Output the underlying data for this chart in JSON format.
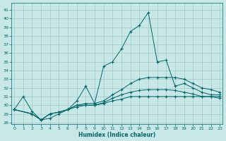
{
  "background_color": "#c8e8e8",
  "grid_color": "#a0c8c8",
  "line_color": "#006666",
  "xlabel": "Humidex (Indice chaleur)",
  "xlim": [
    -0.3,
    23.3
  ],
  "ylim": [
    27.8,
    41.8
  ],
  "yticks": [
    28,
    29,
    30,
    31,
    32,
    33,
    34,
    35,
    36,
    37,
    38,
    39,
    40,
    41
  ],
  "xticks": [
    0,
    1,
    2,
    3,
    4,
    5,
    6,
    7,
    8,
    9,
    10,
    11,
    12,
    13,
    14,
    15,
    16,
    17,
    18,
    19,
    20,
    21,
    22,
    23
  ],
  "curve_main_x": [
    0,
    1,
    2,
    3,
    4,
    5,
    6,
    7,
    8,
    9,
    10,
    11,
    12,
    13,
    14,
    15,
    16,
    17,
    18,
    19,
    20,
    21,
    22,
    23
  ],
  "curve_main_y": [
    29.5,
    31.0,
    29.3,
    28.3,
    28.5,
    29.0,
    29.5,
    30.5,
    32.2,
    30.2,
    34.5,
    35.0,
    36.5,
    38.5,
    39.2,
    40.7,
    35.0,
    35.2,
    32.2,
    32.5,
    32.0,
    31.5,
    31.2,
    31.2
  ],
  "curve_upper_x": [
    0,
    2,
    3,
    4,
    5,
    6,
    7,
    8,
    9,
    10,
    11,
    12,
    13,
    14,
    15,
    16,
    17,
    18,
    19,
    20,
    21,
    22,
    23
  ],
  "curve_upper_y": [
    29.5,
    29.0,
    28.3,
    29.0,
    29.2,
    29.5,
    30.0,
    30.2,
    30.2,
    30.5,
    31.2,
    31.8,
    32.5,
    33.0,
    33.2,
    33.2,
    33.2,
    33.2,
    33.0,
    32.5,
    32.0,
    31.8,
    31.5
  ],
  "curve_mid_x": [
    0,
    2,
    3,
    4,
    5,
    6,
    7,
    8,
    9,
    10,
    11,
    12,
    13,
    14,
    15,
    16,
    17,
    18,
    19,
    20,
    21,
    22,
    23
  ],
  "curve_mid_y": [
    29.5,
    29.0,
    28.3,
    29.0,
    29.2,
    29.5,
    30.0,
    30.0,
    30.0,
    30.3,
    30.8,
    31.2,
    31.5,
    31.7,
    31.8,
    31.8,
    31.8,
    31.7,
    31.5,
    31.3,
    31.0,
    31.0,
    31.0
  ],
  "curve_low_x": [
    0,
    2,
    3,
    4,
    5,
    6,
    7,
    8,
    9,
    10,
    11,
    12,
    13,
    14,
    15,
    16,
    17,
    18,
    19,
    20,
    21,
    22,
    23
  ],
  "curve_low_y": [
    29.5,
    29.0,
    28.3,
    29.0,
    29.2,
    29.5,
    29.8,
    30.0,
    30.0,
    30.2,
    30.5,
    30.7,
    31.0,
    31.0,
    31.0,
    31.0,
    31.0,
    31.0,
    31.0,
    31.0,
    31.0,
    31.0,
    30.8
  ]
}
